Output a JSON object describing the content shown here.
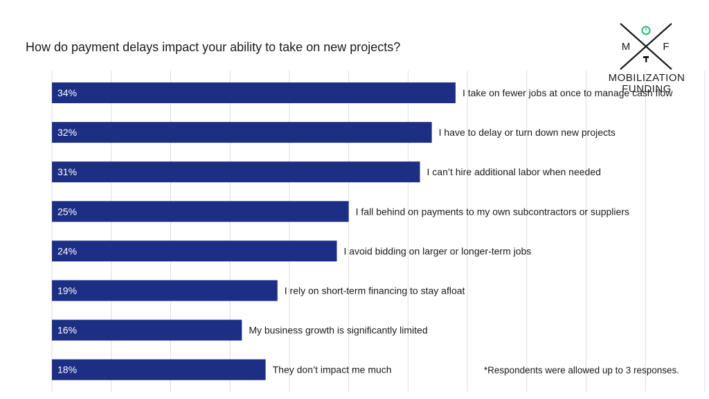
{
  "title": "How do payment delays impact your ability to take on new projects?",
  "footnote": "*Respondents were allowed up to 3 responses.",
  "logo": {
    "letter_left": "M",
    "letter_right": "F",
    "line1": "MOBILIZATION",
    "line2": "FUNDING",
    "accent_color": "#2bb673"
  },
  "colors": {
    "bar": "#1c2f85",
    "value_label": "#ffffff",
    "category_label": "#1a1a1a",
    "gridline": "#dddddd"
  },
  "chart_data": {
    "type": "bar",
    "orientation": "horizontal",
    "title": "How do payment delays impact your ability to take on new projects?",
    "xlabel": "",
    "ylabel": "",
    "xlim": [
      0,
      55
    ],
    "value_suffix": "%",
    "grid": true,
    "categories": [
      "I take on fewer jobs at once to manage cash flow",
      "I have to delay or turn down new projects",
      "I can’t hire additional labor when needed",
      "I fall behind on payments to my own subcontractors or suppliers",
      "I avoid bidding on larger or longer-term jobs",
      "I rely on short-term financing to stay afloat",
      "My business growth is significantly limited",
      "They don’t impact me much"
    ],
    "values": [
      34,
      32,
      31,
      25,
      24,
      19,
      16,
      18
    ],
    "value_labels": [
      "34%",
      "32%",
      "31%",
      "25%",
      "24%",
      "19%",
      "16%",
      "18%"
    ]
  }
}
